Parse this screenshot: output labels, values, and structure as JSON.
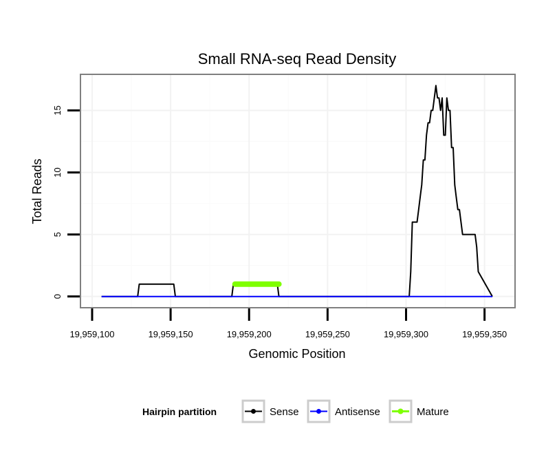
{
  "chart_data": {
    "type": "line",
    "title": "Small RNA-seq Read Density",
    "xlabel": "Genomic Position",
    "ylabel": "Total Reads",
    "xlim": [
      19959093,
      19959369
    ],
    "ylim": [
      -0.85,
      17.85
    ],
    "x_ticks": [
      19959100,
      19959150,
      19959200,
      19959250,
      19959300,
      19959350
    ],
    "x_tick_labels": [
      "19,959,100",
      "19,959,150",
      "19,959,200",
      "19,959,250",
      "19,959,300",
      "19,959,350"
    ],
    "y_ticks": [
      0,
      5,
      10,
      15
    ],
    "y_tick_labels": [
      "0",
      "5",
      "10",
      "15"
    ],
    "grid": true,
    "legend": {
      "title": "Hairpin partition",
      "position": "bottom",
      "entries": [
        {
          "name": "Sense",
          "color": "#000000"
        },
        {
          "name": "Antisense",
          "color": "#0000ff"
        },
        {
          "name": "Mature",
          "color": "#7fff00"
        }
      ]
    },
    "series": [
      {
        "name": "Sense",
        "color": "#000000",
        "x": [
          19959106,
          19959129,
          19959130,
          19959152,
          19959153,
          19959189,
          19959190,
          19959218,
          19959219,
          19959302,
          19959303,
          19959304,
          19959307,
          19959308,
          19959309,
          19959310,
          19959311,
          19959312,
          19959313,
          19959314,
          19959315,
          19959316,
          19959317,
          19959318,
          19959319,
          19959320,
          19959321,
          19959322,
          19959323,
          19959324,
          19959325,
          19959326,
          19959327,
          19959328,
          19959329,
          19959330,
          19959331,
          19959332,
          19959333,
          19959334,
          19959335,
          19959336,
          19959337,
          19959338,
          19959339,
          19959340,
          19959344,
          19959345,
          19959346,
          19959355
        ],
        "y": [
          0,
          0,
          1,
          1,
          0,
          0,
          1,
          1,
          0,
          0,
          2,
          6,
          6,
          7,
          8,
          9,
          11,
          11,
          13,
          14,
          14,
          15,
          15,
          16,
          17,
          16,
          16,
          15,
          16,
          13,
          13,
          16,
          15,
          15,
          12,
          12,
          9,
          8,
          7,
          7,
          6,
          5,
          5,
          5,
          5,
          5,
          5,
          4,
          2,
          0
        ]
      },
      {
        "name": "Antisense",
        "color": "#0000ff",
        "x": [
          19959106,
          19959355
        ],
        "y": [
          0,
          0
        ]
      },
      {
        "name": "Mature",
        "color": "#7fff00",
        "x": [
          19959191,
          19959219
        ],
        "y": [
          1,
          1
        ]
      }
    ]
  }
}
